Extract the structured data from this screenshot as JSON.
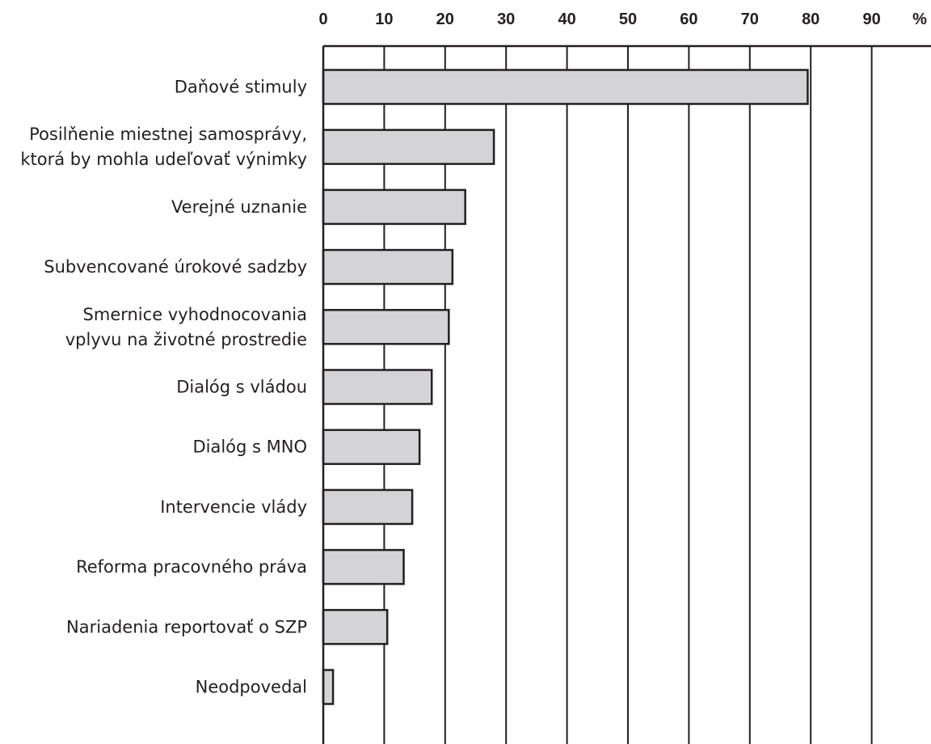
{
  "chart_data": {
    "type": "bar",
    "orientation": "horizontal",
    "title": "",
    "xlabel": "",
    "ylabel": "",
    "unit_label": "%",
    "xlim": [
      0,
      100
    ],
    "x_ticks": [
      "0",
      "10",
      "20",
      "30",
      "40",
      "50",
      "60",
      "70",
      "80",
      "90"
    ],
    "grid": true,
    "bar_fill": "#d4d4d6",
    "stroke_color": "#231f20",
    "categories": [
      [
        "Daňové stimuly"
      ],
      [
        "Posilňenie miestnej samosprávy,",
        "ktorá by mohla udeľovať výnimky"
      ],
      [
        "Verejné uznanie"
      ],
      [
        "Subvencované úrokové sadzby"
      ],
      [
        "Smernice vyhodnocovania",
        "vplyvu na životné prostredie"
      ],
      [
        "Dialóg s vládou"
      ],
      [
        "Dialóg s MNO"
      ],
      [
        "Intervencie vlády"
      ],
      [
        "Reforma pracovného práva"
      ],
      [
        "Nariadenia reportovať o SZP"
      ],
      [
        "Neodpovedal"
      ]
    ],
    "values": [
      79.5,
      28,
      23.3,
      21.2,
      20.6,
      17.8,
      15.8,
      14.6,
      13.2,
      10.5,
      1.6
    ]
  }
}
